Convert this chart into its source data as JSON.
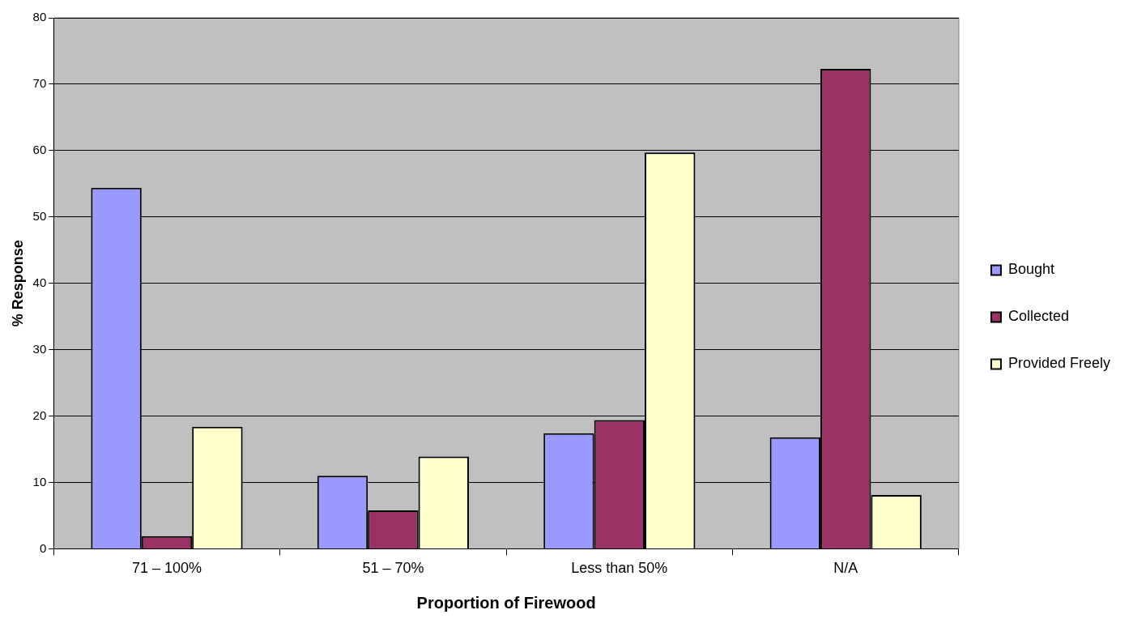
{
  "chart_data": {
    "type": "bar",
    "xlabel": "Proportion of Firewood",
    "ylabel": "% Response",
    "categories": [
      "71 – 100%",
      "51 – 70%",
      "Less than 50%",
      "N/A"
    ],
    "series": [
      {
        "name": "Bought",
        "color": "#9999ff",
        "values": [
          54.4,
          11.0,
          17.4,
          16.8
        ]
      },
      {
        "name": "Collected",
        "color": "#993366",
        "values": [
          1.9,
          5.8,
          19.4,
          72.3
        ]
      },
      {
        "name": "Provided Freely",
        "color": "#ffffcc",
        "values": [
          18.4,
          13.9,
          59.7,
          8.1
        ]
      }
    ],
    "ylim": [
      0,
      80
    ],
    "yticks": [
      0,
      10,
      20,
      30,
      40,
      50,
      60,
      70,
      80
    ],
    "grid": "y",
    "legend": "right"
  }
}
